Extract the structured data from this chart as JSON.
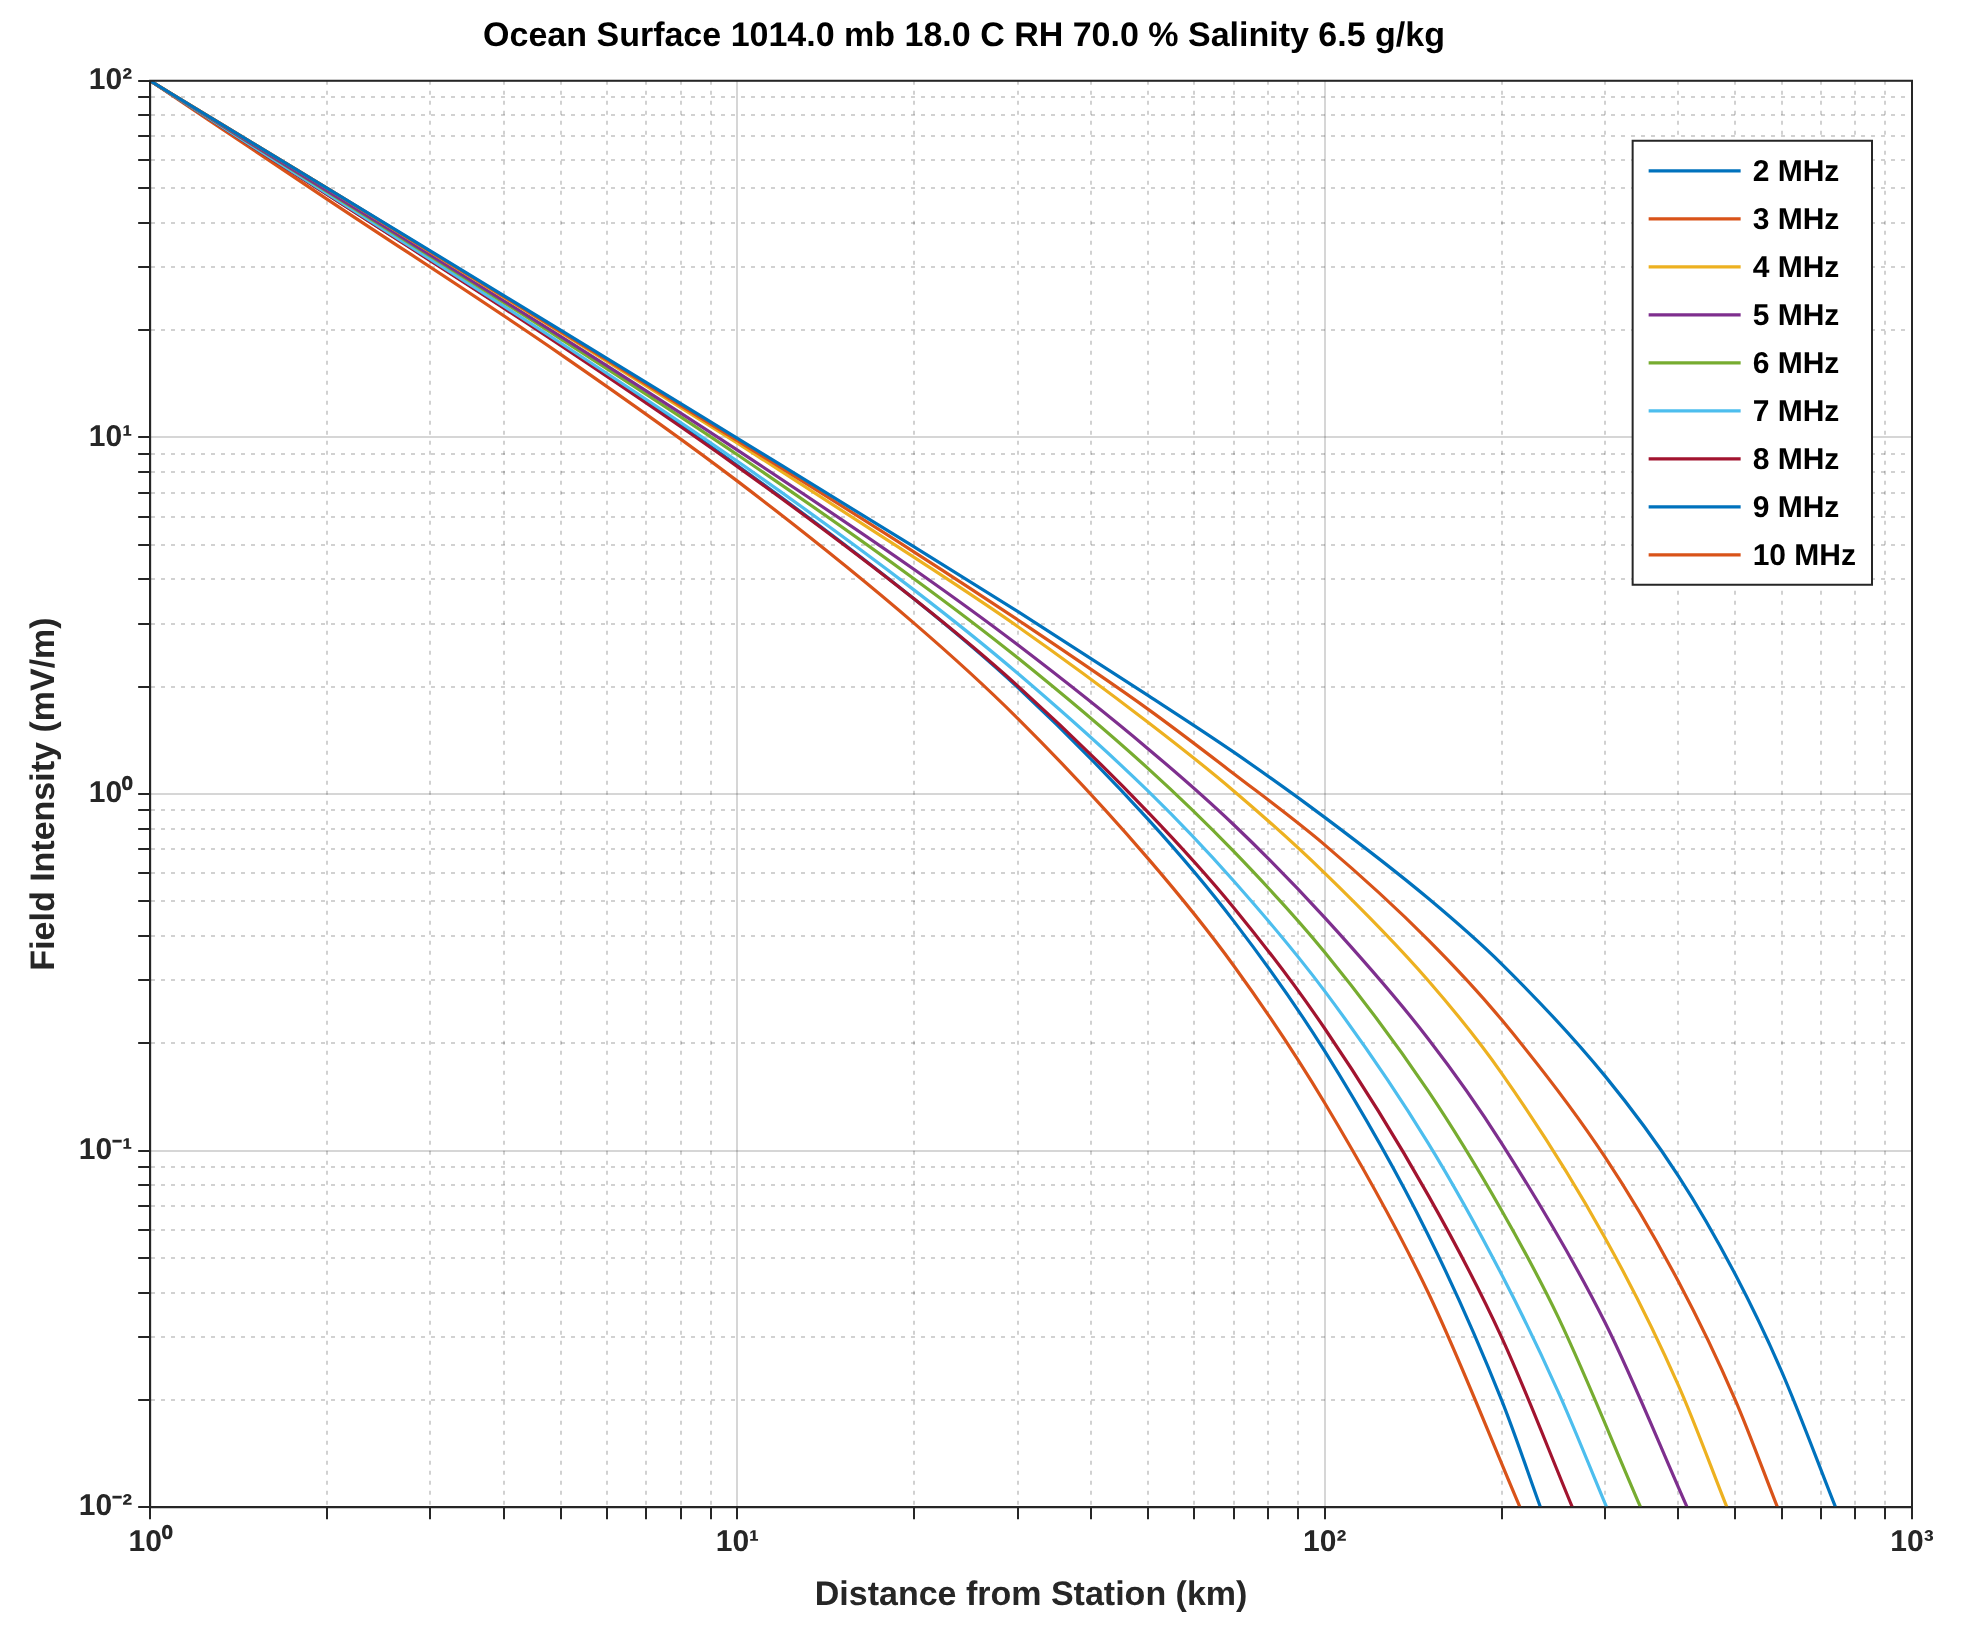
{
  "chart_data": {
    "type": "line",
    "title": "Ocean Surface 1014.0 mb 18.0 C RH 70.0 % Salinity 6.5 g/kg",
    "xlabel": "Distance from Station (km)",
    "ylabel": "Field Intensity (mV/m)",
    "log": "xy",
    "grid": true,
    "legend": "top right",
    "marker": "none",
    "line_style": "solid",
    "xlim": [
      1,
      1000
    ],
    "ylim": [
      0.01,
      100
    ],
    "xticks": [
      {
        "value": 1,
        "label": "10⁰"
      },
      {
        "value": 2,
        "label": null
      },
      {
        "value": 3,
        "label": null
      },
      {
        "value": 4,
        "label": null
      },
      {
        "value": 5,
        "label": null
      },
      {
        "value": 6,
        "label": null
      },
      {
        "value": 7,
        "label": null
      },
      {
        "value": 8,
        "label": null
      },
      {
        "value": 9,
        "label": null
      },
      {
        "value": 10,
        "label": "10¹"
      },
      {
        "value": 20,
        "label": null
      },
      {
        "value": 30,
        "label": null
      },
      {
        "value": 40,
        "label": null
      },
      {
        "value": 50,
        "label": null
      },
      {
        "value": 60,
        "label": null
      },
      {
        "value": 70,
        "label": null
      },
      {
        "value": 80,
        "label": null
      },
      {
        "value": 90,
        "label": null
      },
      {
        "value": 100,
        "label": "10²"
      },
      {
        "value": 200,
        "label": null
      },
      {
        "value": 300,
        "label": null
      },
      {
        "value": 400,
        "label": null
      },
      {
        "value": 500,
        "label": null
      },
      {
        "value": 600,
        "label": null
      },
      {
        "value": 700,
        "label": null
      },
      {
        "value": 800,
        "label": null
      },
      {
        "value": 900,
        "label": null
      },
      {
        "value": 1000,
        "label": "10³"
      }
    ],
    "yticks": [
      {
        "value": 0.01,
        "label": "10⁻²"
      },
      {
        "value": 0.02,
        "label": null
      },
      {
        "value": 0.03,
        "label": null
      },
      {
        "value": 0.04,
        "label": null
      },
      {
        "value": 0.05,
        "label": null
      },
      {
        "value": 0.06,
        "label": null
      },
      {
        "value": 0.07,
        "label": null
      },
      {
        "value": 0.08,
        "label": null
      },
      {
        "value": 0.09,
        "label": null
      },
      {
        "value": 0.1,
        "label": "10⁻¹"
      },
      {
        "value": 0.2,
        "label": null
      },
      {
        "value": 0.3,
        "label": null
      },
      {
        "value": 0.4,
        "label": null
      },
      {
        "value": 0.5,
        "label": null
      },
      {
        "value": 0.6,
        "label": null
      },
      {
        "value": 0.7,
        "label": null
      },
      {
        "value": 0.8,
        "label": null
      },
      {
        "value": 0.9,
        "label": null
      },
      {
        "value": 1,
        "label": "10⁰"
      },
      {
        "value": 2,
        "label": null
      },
      {
        "value": 3,
        "label": null
      },
      {
        "value": 4,
        "label": null
      },
      {
        "value": 5,
        "label": null
      },
      {
        "value": 6,
        "label": null
      },
      {
        "value": 7,
        "label": null
      },
      {
        "value": 8,
        "label": null
      },
      {
        "value": 9,
        "label": null
      },
      {
        "value": 10,
        "label": "10¹"
      },
      {
        "value": 20,
        "label": null
      },
      {
        "value": 30,
        "label": null
      },
      {
        "value": 40,
        "label": null
      },
      {
        "value": 50,
        "label": null
      },
      {
        "value": 60,
        "label": null
      },
      {
        "value": 70,
        "label": null
      },
      {
        "value": 80,
        "label": null
      },
      {
        "value": 90,
        "label": null
      },
      {
        "value": 100,
        "label": "10²"
      }
    ],
    "series": [
      {
        "name": "2 MHz",
        "color": "#0072bd",
        "x": [
          1,
          2,
          5,
          10,
          20,
          30,
          50,
          70,
          100,
          150,
          200,
          300,
          400,
          500,
          600,
          741
        ],
        "values": [
          100,
          50,
          20,
          9.94,
          4.93,
          3.25,
          1.89,
          1.31,
          0.86,
          0.51,
          0.334,
          0.162,
          0.085,
          0.045,
          0.024,
          0.01
        ]
      },
      {
        "name": "3 MHz",
        "color": "#d95319",
        "x": [
          1,
          2,
          5,
          10,
          20,
          30,
          50,
          70,
          100,
          150,
          200,
          300,
          400,
          500,
          590
        ],
        "values": [
          100,
          50,
          19.8,
          9.8,
          4.77,
          3.08,
          1.73,
          1.14,
          0.72,
          0.39,
          0.233,
          0.096,
          0.043,
          0.02,
          0.01
        ]
      },
      {
        "name": "4 MHz",
        "color": "#edb120",
        "x": [
          1,
          2,
          5,
          10,
          20,
          30,
          50,
          70,
          100,
          150,
          200,
          300,
          400,
          484
        ],
        "values": [
          100,
          50,
          19.7,
          9.64,
          4.61,
          2.95,
          1.59,
          1.02,
          0.6,
          0.3,
          0.165,
          0.057,
          0.022,
          0.01
        ]
      },
      {
        "name": "5 MHz",
        "color": "#7e2f8e",
        "x": [
          1,
          2,
          5,
          10,
          20,
          30,
          50,
          70,
          100,
          150,
          200,
          300,
          414
        ],
        "values": [
          100,
          49.2,
          19.2,
          9.21,
          4.26,
          2.62,
          1.34,
          0.82,
          0.45,
          0.206,
          0.105,
          0.033,
          0.01
        ]
      },
      {
        "name": "6 MHz",
        "color": "#77ac30",
        "x": [
          1,
          2,
          5,
          10,
          20,
          30,
          50,
          70,
          100,
          150,
          200,
          250,
          345
        ],
        "values": [
          100,
          49,
          18.9,
          8.94,
          4.01,
          2.41,
          1.18,
          0.69,
          0.36,
          0.147,
          0.068,
          0.034,
          0.01
        ]
      },
      {
        "name": "7 MHz",
        "color": "#4dbeee",
        "x": [
          1,
          2,
          5,
          10,
          20,
          30,
          50,
          70,
          100,
          150,
          200,
          250,
          302
        ],
        "values": [
          100,
          48.3,
          18.4,
          8.57,
          3.73,
          2.18,
          1.02,
          0.57,
          0.28,
          0.105,
          0.045,
          0.021,
          0.01
        ]
      },
      {
        "name": "8 MHz",
        "color": "#a2142f",
        "x": [
          1,
          2,
          5,
          10,
          20,
          30,
          50,
          70,
          100,
          150,
          200,
          264
        ],
        "values": [
          100,
          48,
          18.1,
          8.28,
          3.52,
          2.01,
          0.89,
          0.48,
          0.22,
          0.075,
          0.03,
          0.01
        ]
      },
      {
        "name": "9 MHz",
        "color": "#0072bd",
        "x": [
          1,
          2,
          5,
          10,
          20,
          30,
          50,
          70,
          100,
          150,
          200,
          233
        ],
        "values": [
          100,
          48.1,
          18.2,
          8.34,
          3.52,
          1.99,
          0.85,
          0.44,
          0.19,
          0.058,
          0.02,
          0.01
        ]
      },
      {
        "name": "10 MHz",
        "color": "#d95319",
        "x": [
          1,
          2,
          5,
          10,
          20,
          30,
          50,
          70,
          100,
          150,
          215
        ],
        "values": [
          100,
          46.6,
          17.1,
          7.54,
          3.01,
          1.63,
          0.66,
          0.33,
          0.136,
          0.04,
          0.01
        ]
      }
    ]
  }
}
